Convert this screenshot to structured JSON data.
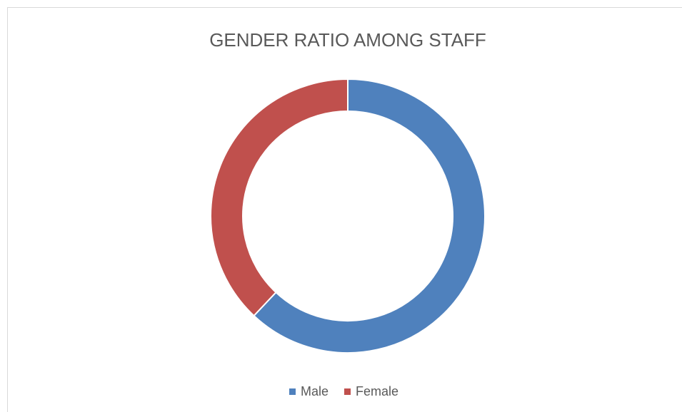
{
  "chart_data": {
    "type": "donut",
    "title": "GENDER RATIO AMONG STAFF",
    "categories": [
      "Male",
      "Female"
    ],
    "values": [
      62,
      38
    ],
    "colors": [
      "#4f81bd",
      "#c0504d"
    ],
    "legend": "bottom"
  }
}
